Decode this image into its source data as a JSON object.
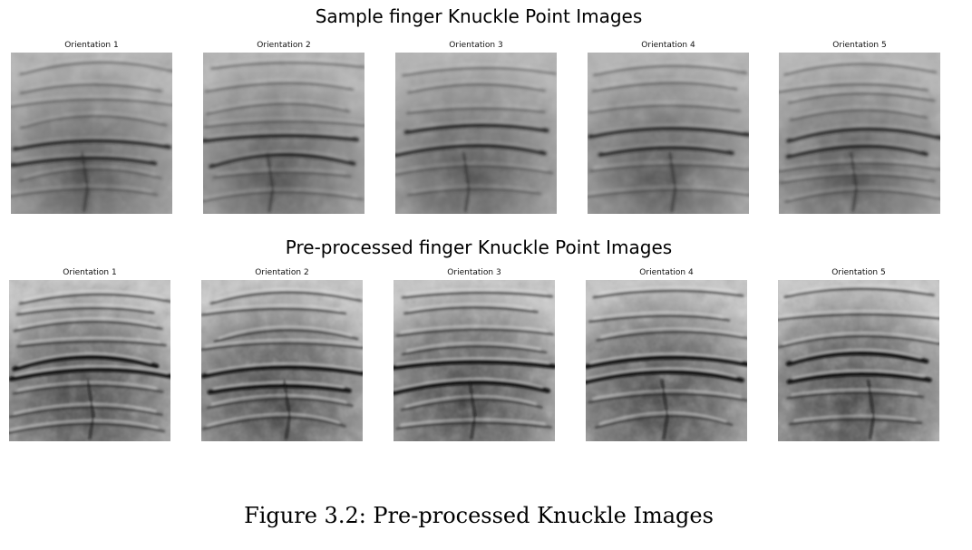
{
  "figure": {
    "rows": [
      {
        "title": "Sample finger Knuckle Point Images",
        "panels": [
          {
            "label": "Orientation 1"
          },
          {
            "label": "Orientation 2"
          },
          {
            "label": "Orientation 3"
          },
          {
            "label": "Orientation 4"
          },
          {
            "label": "Orientation 5"
          }
        ]
      },
      {
        "title": "Pre-processed finger Knuckle Point Images",
        "panels": [
          {
            "label": "Orientation 1"
          },
          {
            "label": "Orientation 2"
          },
          {
            "label": "Orientation 3"
          },
          {
            "label": "Orientation 4"
          },
          {
            "label": "Orientation 5"
          }
        ]
      }
    ],
    "caption": "Figure 3.2: Pre-processed Knuckle Images"
  }
}
